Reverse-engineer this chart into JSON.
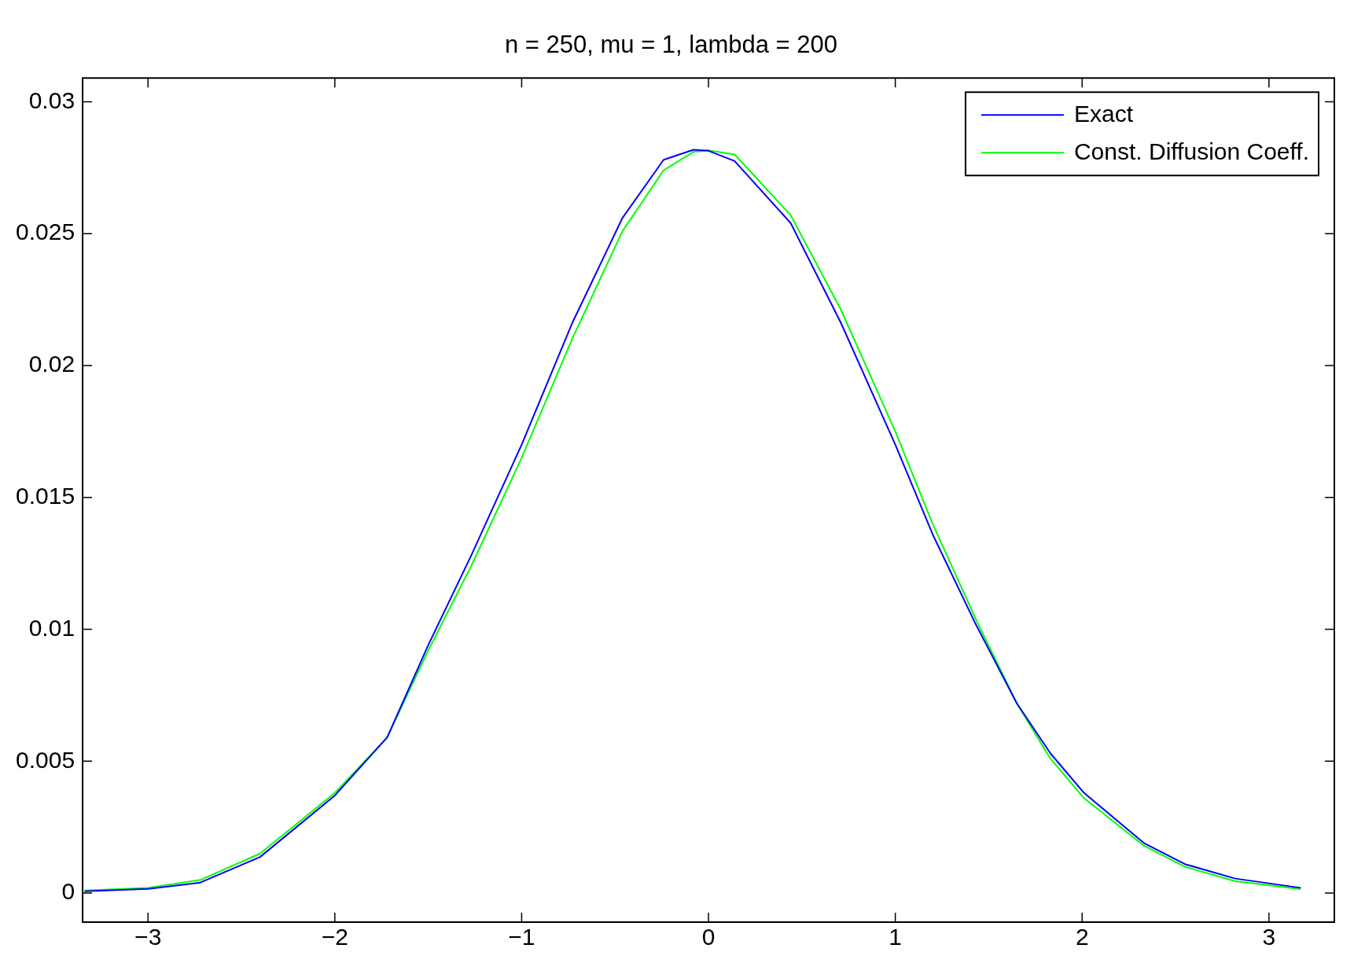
{
  "chart_data": {
    "type": "line",
    "title": "n = 250, mu = 1, lambda = 200",
    "legend": "top right",
    "grid": false,
    "marker": "none",
    "line_style": "solid",
    "xlim": [
      -3.35,
      3.35
    ],
    "xticks": [
      {
        "value": -3,
        "label": "−3"
      },
      {
        "value": -2,
        "label": "−2"
      },
      {
        "value": -1,
        "label": "−1"
      },
      0,
      1,
      2,
      3
    ],
    "ylim": [
      -0.0011,
      0.0309
    ],
    "yticks": [
      0,
      0.005,
      0.01,
      0.015,
      0.02,
      0.025,
      0.03
    ],
    "x": [
      -3.34,
      -3,
      -2.72,
      -2.4,
      -2,
      -1.72,
      -1.5,
      -1.27,
      -1,
      -0.73,
      -0.46,
      -0.24,
      -0.08,
      0,
      0.14,
      0.44,
      0.71,
      1,
      1.2,
      1.43,
      1.65,
      1.83,
      2.01,
      2.33,
      2.55,
      2.82,
      3.17
    ],
    "series": [
      {
        "name": "Exact",
        "color": "#0000ff",
        "values": [
          7e-05,
          0.00016,
          0.0004,
          0.00137,
          0.0037,
          0.0059,
          0.0094,
          0.0128,
          0.017,
          0.0216,
          0.0256,
          0.0278,
          0.02818,
          0.02814,
          0.02775,
          0.0254,
          0.0216,
          0.017,
          0.0136,
          0.0102,
          0.0072,
          0.0053,
          0.0038,
          0.0019,
          0.0011,
          0.00055,
          0.0002
        ]
      },
      {
        "name": "Const. Diffusion Coeff.",
        "color": "#00ff00",
        "values": [
          0.0001,
          0.0002,
          0.0005,
          0.0015,
          0.0038,
          0.0059,
          0.0092,
          0.0124,
          0.0165,
          0.021,
          0.0251,
          0.0274,
          0.0281,
          0.02816,
          0.028,
          0.0257,
          0.0221,
          0.0175,
          0.014,
          0.0104,
          0.0072,
          0.0051,
          0.0036,
          0.0018,
          0.001,
          0.00045,
          0.00015
        ]
      }
    ]
  }
}
